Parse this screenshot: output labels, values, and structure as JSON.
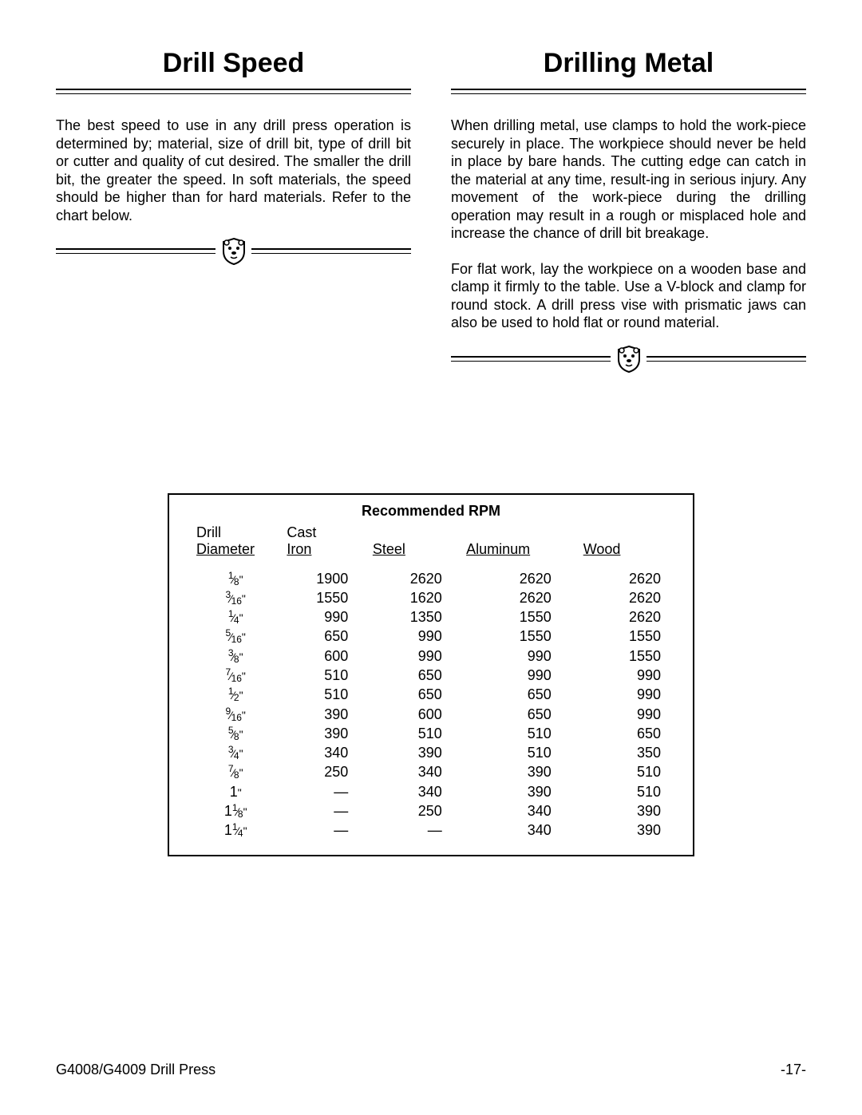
{
  "left": {
    "heading": "Drill Speed",
    "para1": "The best speed to use in any drill press operation is determined by; material, size of drill bit, type of drill bit or cutter and quality of cut desired. The smaller the drill bit, the greater the speed. In soft materials, the speed should be higher than for hard materials. Refer to the chart below."
  },
  "right": {
    "heading": "Drilling Metal",
    "para1": "When drilling metal, use clamps to hold the work-piece securely in place. The workpiece should never be held in place by bare hands. The cutting edge can catch in the material at any time, result-ing in serious injury. Any movement of the work-piece during the drilling operation may result in a rough or misplaced hole and increase the chance of drill bit breakage.",
    "para2": "For flat work, lay the workpiece on a wooden base and clamp it firmly to the table. Use a V-block and clamp for round stock. A drill press vise with prismatic jaws can also be used to hold flat or round material."
  },
  "table": {
    "title": "Recommended RPM",
    "headers": {
      "dia_top": "Drill",
      "dia_bot": "Diameter",
      "iron_top": "Cast",
      "iron_bot": "Iron",
      "steel": "Steel",
      "alum": "Aluminum",
      "wood": "Wood"
    },
    "rows": [
      {
        "w": "",
        "n": "1",
        "d": "8",
        "iron": "1900",
        "steel": "2620",
        "alum": "2620",
        "wood": "2620"
      },
      {
        "w": "",
        "n": "3",
        "d": "16",
        "iron": "1550",
        "steel": "1620",
        "alum": "2620",
        "wood": "2620"
      },
      {
        "w": "",
        "n": "1",
        "d": "4",
        "iron": "990",
        "steel": "1350",
        "alum": "1550",
        "wood": "2620"
      },
      {
        "w": "",
        "n": "5",
        "d": "16",
        "iron": "650",
        "steel": "990",
        "alum": "1550",
        "wood": "1550"
      },
      {
        "w": "",
        "n": "3",
        "d": "8",
        "iron": "600",
        "steel": "990",
        "alum": "990",
        "wood": "1550"
      },
      {
        "w": "",
        "n": "7",
        "d": "16",
        "iron": "510",
        "steel": "650",
        "alum": "990",
        "wood": "990"
      },
      {
        "w": "",
        "n": "1",
        "d": "2",
        "iron": "510",
        "steel": "650",
        "alum": "650",
        "wood": "990"
      },
      {
        "w": "",
        "n": "9",
        "d": "16",
        "iron": "390",
        "steel": "600",
        "alum": "650",
        "wood": "990"
      },
      {
        "w": "",
        "n": "5",
        "d": "8",
        "iron": "390",
        "steel": "510",
        "alum": "510",
        "wood": "650"
      },
      {
        "w": "",
        "n": "3",
        "d": "4",
        "iron": "340",
        "steel": "390",
        "alum": "510",
        "wood": "350"
      },
      {
        "w": "",
        "n": "7",
        "d": "8",
        "iron": "250",
        "steel": "340",
        "alum": "390",
        "wood": "510"
      },
      {
        "w": "1",
        "n": "",
        "d": "",
        "iron": "—",
        "steel": "340",
        "alum": "390",
        "wood": "510"
      },
      {
        "w": "1",
        "n": "1",
        "d": "8",
        "iron": "—",
        "steel": "250",
        "alum": "340",
        "wood": "390"
      },
      {
        "w": "1",
        "n": "1",
        "d": "4",
        "iron": "—",
        "steel": "—",
        "alum": "340",
        "wood": "390"
      }
    ]
  },
  "footer": {
    "left": "G4008/G4009 Drill Press",
    "right": "-17-"
  },
  "colors": {
    "text": "#000000",
    "bg": "#ffffff",
    "rule": "#000000"
  },
  "typography": {
    "body_fontsize_pt": 13,
    "heading_fontsize_pt": 26,
    "font_family": "Arial, Helvetica, sans-serif"
  }
}
